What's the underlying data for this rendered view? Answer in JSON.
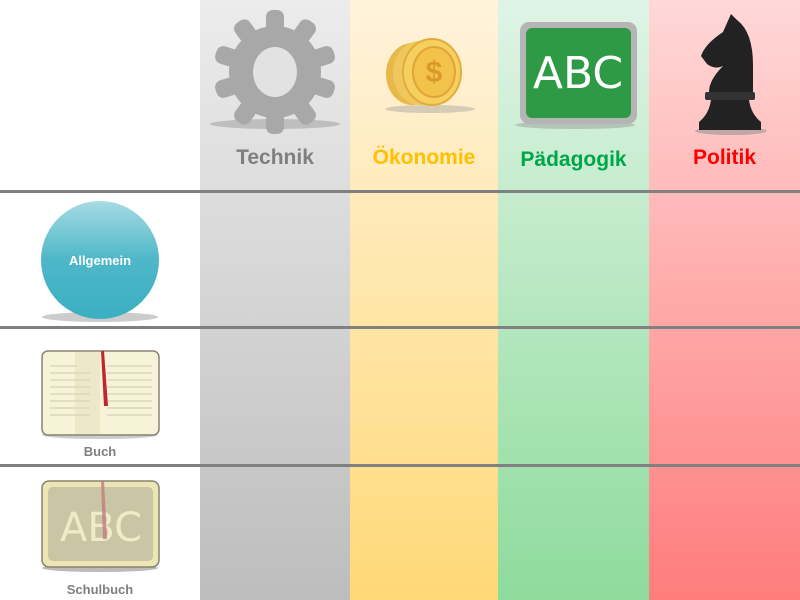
{
  "columns": [
    {
      "label": "Technik",
      "color": "#7f7f7f",
      "icon": "gear-icon"
    },
    {
      "label": "Ökonomie",
      "color": "#ffc000",
      "icon": "coins-icon"
    },
    {
      "label": "Pädagogik",
      "color": "#00a74a",
      "icon": "chalkboard-icon"
    },
    {
      "label": "Politik",
      "color": "#ff0000",
      "icon": "chess-knight-icon"
    }
  ],
  "rows": [
    {
      "label": "Allgemein",
      "icon": "sphere-icon"
    },
    {
      "label": "Buch",
      "icon": "open-book-icon"
    },
    {
      "label": "Schulbuch",
      "icon": "schoolbook-icon"
    }
  ],
  "chalkboard_text": "ABC",
  "coin_symbol": "$"
}
